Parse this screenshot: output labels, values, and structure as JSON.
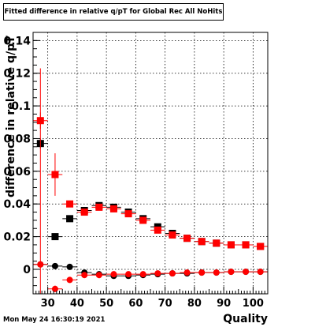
{
  "title": "Fitted difference in relative q/pT for Global Rec All NoHits",
  "datestamp": "Mon May 24 16:30:19 2021",
  "colors": {
    "series_black": "#000000",
    "series_red": "#ff0000",
    "grid": "#000000"
  },
  "chart_data": {
    "type": "scatter",
    "xlabel": "Quality",
    "ylabel": "difference in relative q/pT",
    "xlim": [
      25,
      105
    ],
    "ylim": [
      -0.015,
      0.145
    ],
    "xticks": [
      30,
      40,
      50,
      60,
      70,
      80,
      90,
      100
    ],
    "yticks": [
      0,
      0.02,
      0.04,
      0.06,
      0.08,
      0.1,
      0.12,
      0.14
    ],
    "ytick_labels": [
      "0",
      "0.02",
      "0.04",
      "0.06",
      "0.08",
      "0.1",
      "0.12",
      "0.14"
    ],
    "grid": true,
    "series": [
      {
        "marker": "square",
        "color": "#000000",
        "x": [
          27.5,
          32.5,
          37.5,
          42.5,
          47.5,
          52.5,
          57.5,
          62.5,
          67.5,
          72.5,
          77.5,
          82.5,
          87.5,
          92.5,
          97.5,
          102.5
        ],
        "y": [
          0.077,
          0.02,
          0.031,
          0.036,
          0.039,
          0.038,
          0.035,
          0.031,
          0.026,
          0.022,
          0.019,
          0.017,
          0.016,
          0.015,
          0.015,
          0.014
        ],
        "yerr": [
          0.003,
          0.002,
          0.002,
          0.001,
          0.001,
          0.001,
          0.001,
          0.001,
          0.001,
          0.001,
          0.001,
          0.001,
          0.001,
          0.001,
          0.001,
          0.001
        ]
      },
      {
        "marker": "square",
        "color": "#ff0000",
        "x": [
          27.5,
          32.5,
          37.5,
          42.5,
          47.5,
          52.5,
          57.5,
          62.5,
          67.5,
          72.5,
          77.5,
          82.5,
          87.5,
          92.5,
          97.5,
          102.5
        ],
        "y": [
          0.091,
          0.058,
          0.04,
          0.035,
          0.038,
          0.037,
          0.034,
          0.03,
          0.024,
          0.021,
          0.019,
          0.017,
          0.016,
          0.015,
          0.015,
          0.014
        ],
        "yerr": [
          0.005,
          0.013,
          0.002,
          0.001,
          0.001,
          0.001,
          0.001,
          0.001,
          0.001,
          0.001,
          0.001,
          0.001,
          0.001,
          0.001,
          0.001,
          0.001
        ]
      },
      {
        "marker": "circle",
        "color": "#000000",
        "x": [
          27.5,
          32.5,
          37.5,
          42.5,
          47.5,
          52.5,
          57.5,
          62.5,
          67.5,
          72.5,
          77.5,
          82.5,
          87.5,
          92.5,
          97.5,
          102.5
        ],
        "y": [
          0.003,
          0.002,
          0.0015,
          -0.002,
          -0.003,
          -0.004,
          -0.004,
          -0.0035,
          -0.003,
          -0.0025,
          -0.0025,
          -0.002,
          -0.002,
          -0.0015,
          -0.0015,
          -0.0015
        ],
        "yerr": [
          0.001,
          0.001,
          0.001,
          0.001,
          0.001,
          0.001,
          0.001,
          0.001,
          0.001,
          0.001,
          0.001,
          0.001,
          0.001,
          0.001,
          0.001,
          0.001
        ]
      },
      {
        "marker": "circle",
        "color": "#ff0000",
        "x": [
          27.5,
          32.5,
          37.5,
          42.5,
          47.5,
          52.5,
          57.5,
          62.5,
          67.5,
          72.5,
          77.5,
          82.5,
          87.5,
          92.5,
          97.5,
          102.5
        ],
        "y": [
          0.003,
          -0.012,
          -0.0065,
          -0.0035,
          -0.0035,
          -0.003,
          -0.003,
          -0.003,
          -0.0025,
          -0.0025,
          -0.002,
          -0.002,
          -0.002,
          -0.0015,
          -0.0015,
          -0.0015
        ],
        "yerr": [
          0.12,
          0.002,
          0.001,
          0.001,
          0.001,
          0.001,
          0.001,
          0.001,
          0.001,
          0.001,
          0.001,
          0.001,
          0.001,
          0.001,
          0.001,
          0.001
        ]
      }
    ]
  }
}
